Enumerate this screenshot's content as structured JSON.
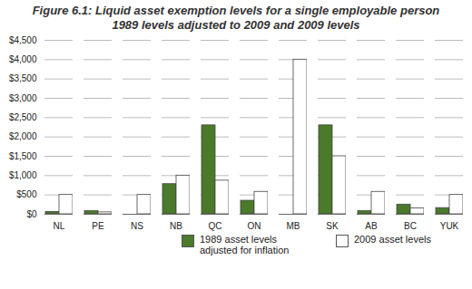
{
  "chart_data": {
    "type": "bar",
    "title": "Figure 6.1: Liquid asset exemption levels for a single employable person",
    "subtitle": "1989 levels adjusted to 2009 and 2009 levels",
    "categories": [
      "NL",
      "PE",
      "NS",
      "NB",
      "QC",
      "ON",
      "MB",
      "SK",
      "AB",
      "BC",
      "YUK"
    ],
    "series": [
      {
        "name": "1989 asset levels adjusted for inflation",
        "color": "#4a7a2a",
        "values": [
          60,
          80,
          0,
          780,
          2300,
          350,
          0,
          2300,
          80,
          250,
          160
        ]
      },
      {
        "name": "2009 asset levels",
        "color": "#ffffff",
        "values": [
          500,
          50,
          500,
          1000,
          870,
          580,
          4000,
          1500,
          580,
          150,
          500
        ]
      }
    ],
    "ylim": [
      0,
      4500
    ],
    "yticks": [
      {
        "value": 0,
        "label": "$0"
      },
      {
        "value": 500,
        "label": "$500"
      },
      {
        "value": 1000,
        "label": "$1,000"
      },
      {
        "value": 1500,
        "label": "$1,500"
      },
      {
        "value": 2000,
        "label": "$2,000"
      },
      {
        "value": 2500,
        "label": "$2,500"
      },
      {
        "value": 3000,
        "label": "$3,000"
      },
      {
        "value": 3500,
        "label": "$3,500"
      },
      {
        "value": 4000,
        "label": "$4,000"
      },
      {
        "value": 4500,
        "label": "$4,500"
      }
    ],
    "grid": true,
    "legend": "bottom"
  }
}
